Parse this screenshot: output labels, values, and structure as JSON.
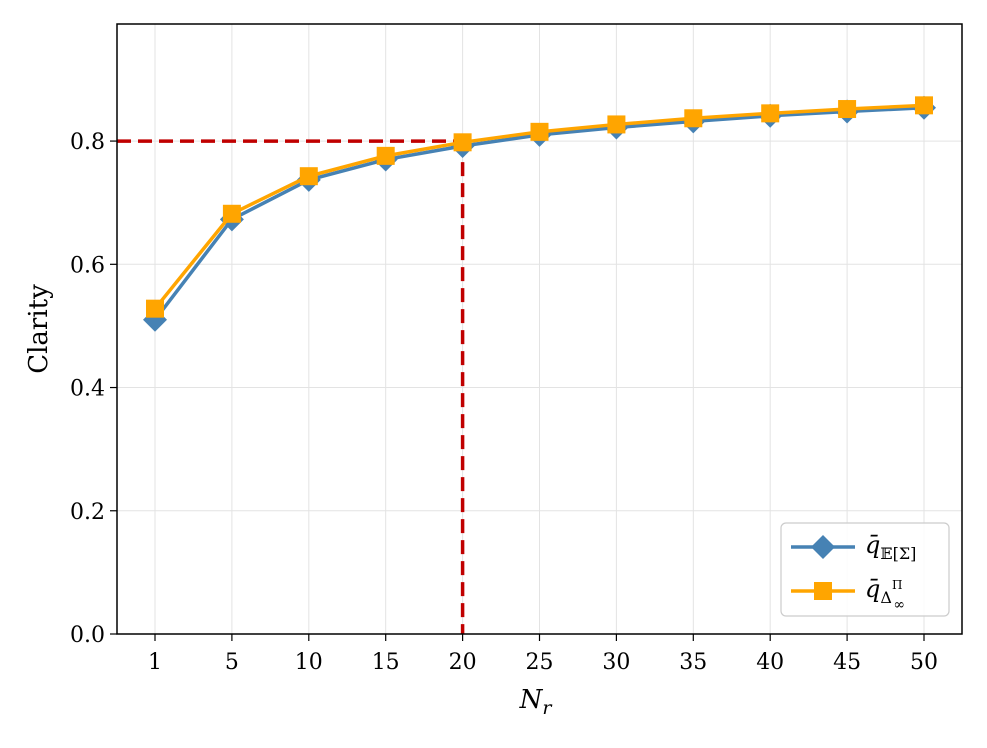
{
  "chart_data": {
    "type": "line",
    "xlabel": "N",
    "xlabel_sub": "r",
    "ylabel": "Clarity",
    "x": [
      1,
      5,
      10,
      15,
      20,
      25,
      30,
      35,
      40,
      45,
      50
    ],
    "x_tick_labels": [
      "1",
      "5",
      "10",
      "15",
      "20",
      "25",
      "30",
      "35",
      "40",
      "45",
      "50"
    ],
    "y_ticks": [
      0.0,
      0.2,
      0.4,
      0.6,
      0.8
    ],
    "y_tick_labels": [
      "0.0",
      "0.2",
      "0.4",
      "0.6",
      "0.8"
    ],
    "ylim": [
      0.0,
      0.99
    ],
    "grid": true,
    "legend_position": "bottom-right",
    "series": [
      {
        "name": "q̄𝔼[Σ]",
        "name_base": "q̄",
        "name_sub": "𝔼[Σ]",
        "color": "#4682B4",
        "marker": "diamond",
        "values": [
          0.51,
          0.673,
          0.737,
          0.77,
          0.792,
          0.81,
          0.822,
          0.832,
          0.841,
          0.848,
          0.854
        ]
      },
      {
        "name": "q̄Δ∞Π",
        "name_base": "q̄",
        "name_sub": "Δ",
        "name_subsub": "∞",
        "name_subsup": "Π",
        "color": "#FFA500",
        "marker": "square",
        "values": [
          0.528,
          0.682,
          0.743,
          0.776,
          0.798,
          0.815,
          0.827,
          0.837,
          0.845,
          0.852,
          0.858
        ]
      }
    ],
    "reference_lines": {
      "color": "#C00000",
      "style": "dashed",
      "x": 20,
      "y": 0.8
    }
  }
}
